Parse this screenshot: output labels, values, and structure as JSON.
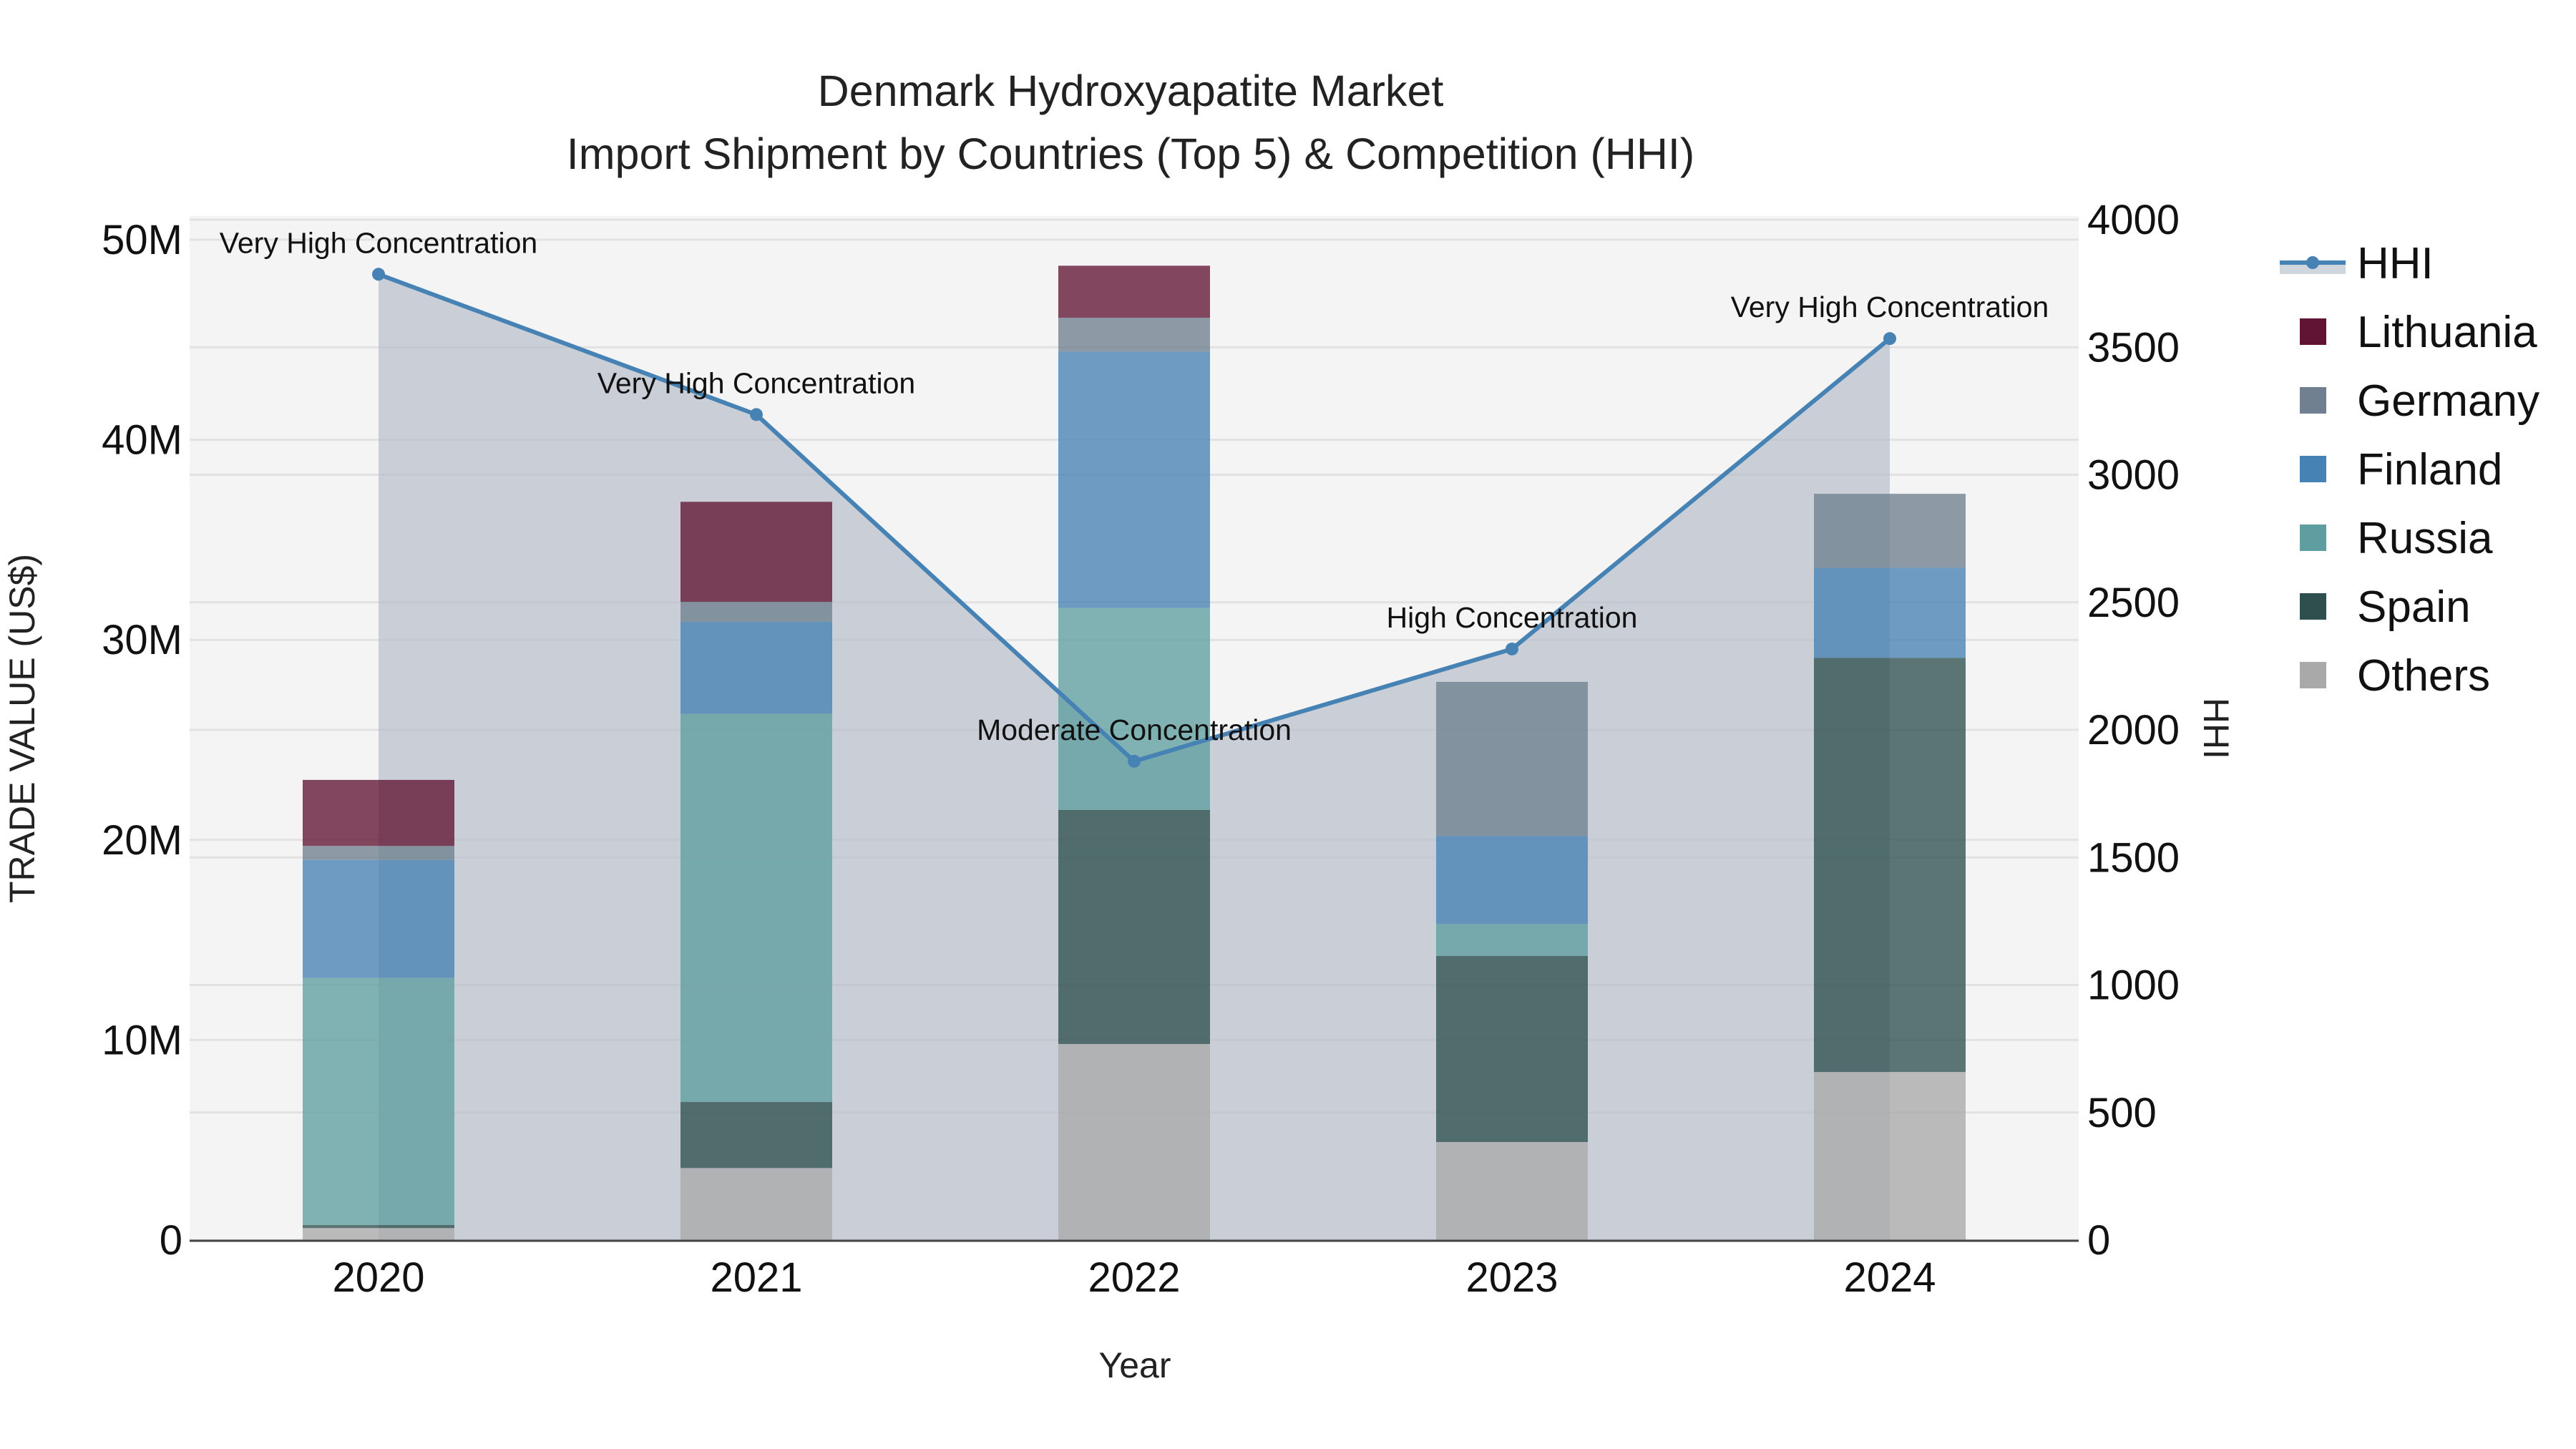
{
  "title": {
    "line1": "Denmark Hydroxyapatite Market",
    "line2": "Import Shipment by Countries (Top 5) & Competition (HHI)"
  },
  "axes": {
    "x_title": "Year",
    "y_left_title": "TRADE VALUE (US$)",
    "y_right_title": "HHI",
    "y_left_ticks": [
      "0",
      "10M",
      "20M",
      "30M",
      "40M",
      "50M"
    ],
    "y_right_ticks": [
      "0",
      "500",
      "1000",
      "1500",
      "2000",
      "2500",
      "3000",
      "3500",
      "4000"
    ]
  },
  "legend": [
    {
      "name": "HHI",
      "type": "line",
      "color": "#4682b4"
    },
    {
      "name": "Lithuania",
      "type": "bar",
      "color": "#611434"
    },
    {
      "name": "Germany",
      "type": "bar",
      "color": "#708090"
    },
    {
      "name": "Finland",
      "type": "bar",
      "color": "#4682b4"
    },
    {
      "name": "Russia",
      "type": "bar",
      "color": "#5f9ea0"
    },
    {
      "name": "Spain",
      "type": "bar",
      "color": "#2f4f4f"
    },
    {
      "name": "Others",
      "type": "bar",
      "color": "#a9a9a9"
    }
  ],
  "chart_data": {
    "type": "bar",
    "stacked": true,
    "title": "Denmark Hydroxyapatite Market — Import Shipment by Countries (Top 5) & Competition (HHI)",
    "xlabel": "Year",
    "ylabel": "TRADE VALUE (US$)",
    "y2label": "HHI",
    "ylim": [
      0,
      51000000
    ],
    "y2lim": [
      0,
      4080
    ],
    "categories": [
      "2020",
      "2021",
      "2022",
      "2023",
      "2024"
    ],
    "series": [
      {
        "name": "Others",
        "color": "#a9a9a9",
        "values": [
          600000,
          3600000,
          9800000,
          4900000,
          8400000
        ]
      },
      {
        "name": "Spain",
        "color": "#2f4f4f",
        "values": [
          150000,
          3300000,
          11700000,
          9300000,
          20700000
        ]
      },
      {
        "name": "Russia",
        "color": "#5f9ea0",
        "values": [
          12350000,
          19400000,
          10100000,
          1600000,
          0
        ]
      },
      {
        "name": "Finland",
        "color": "#4682b4",
        "values": [
          5900000,
          4600000,
          12800000,
          4400000,
          4500000
        ]
      },
      {
        "name": "Germany",
        "color": "#708090",
        "values": [
          700000,
          1000000,
          1700000,
          7700000,
          3700000
        ]
      },
      {
        "name": "Lithuania",
        "color": "#611434",
        "values": [
          3300000,
          5000000,
          2600000,
          0,
          0
        ]
      }
    ],
    "line_series": {
      "name": "HHI",
      "axis": "right",
      "color": "#4682b4",
      "fill": "tozeroy",
      "values": [
        3786,
        3236,
        1877,
        2317,
        3534
      ],
      "annotations": [
        "Very High Concentration",
        "Very High Concentration",
        "Moderate Concentration",
        "High Concentration",
        "Very High Concentration"
      ]
    },
    "grid": true,
    "legend_position": "right"
  }
}
